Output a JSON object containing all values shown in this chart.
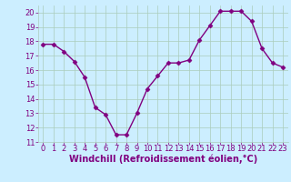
{
  "x": [
    0,
    1,
    2,
    3,
    4,
    5,
    6,
    7,
    8,
    9,
    10,
    11,
    12,
    13,
    14,
    15,
    16,
    17,
    18,
    19,
    20,
    21,
    22,
    23
  ],
  "y": [
    17.8,
    17.8,
    17.3,
    16.6,
    15.5,
    13.4,
    12.9,
    11.5,
    11.5,
    13.0,
    14.7,
    15.6,
    16.5,
    16.5,
    16.7,
    18.1,
    19.1,
    20.1,
    20.1,
    20.1,
    19.4,
    17.5,
    16.5,
    16.2
  ],
  "line_color": "#800080",
  "marker": "D",
  "marker_size": 2.5,
  "bg_color": "#cceeff",
  "grid_color": "#aaccbb",
  "xlabel": "Windchill (Refroidissement éolien,°C)",
  "xlabel_color": "#800080",
  "tick_color": "#800080",
  "ylim": [
    11,
    20.5
  ],
  "xlim": [
    -0.5,
    23.5
  ],
  "yticks": [
    11,
    12,
    13,
    14,
    15,
    16,
    17,
    18,
    19,
    20
  ],
  "xticks": [
    0,
    1,
    2,
    3,
    4,
    5,
    6,
    7,
    8,
    9,
    10,
    11,
    12,
    13,
    14,
    15,
    16,
    17,
    18,
    19,
    20,
    21,
    22,
    23
  ],
  "font_size": 6.0,
  "xlabel_font_size": 7.0,
  "linewidth": 1.0
}
